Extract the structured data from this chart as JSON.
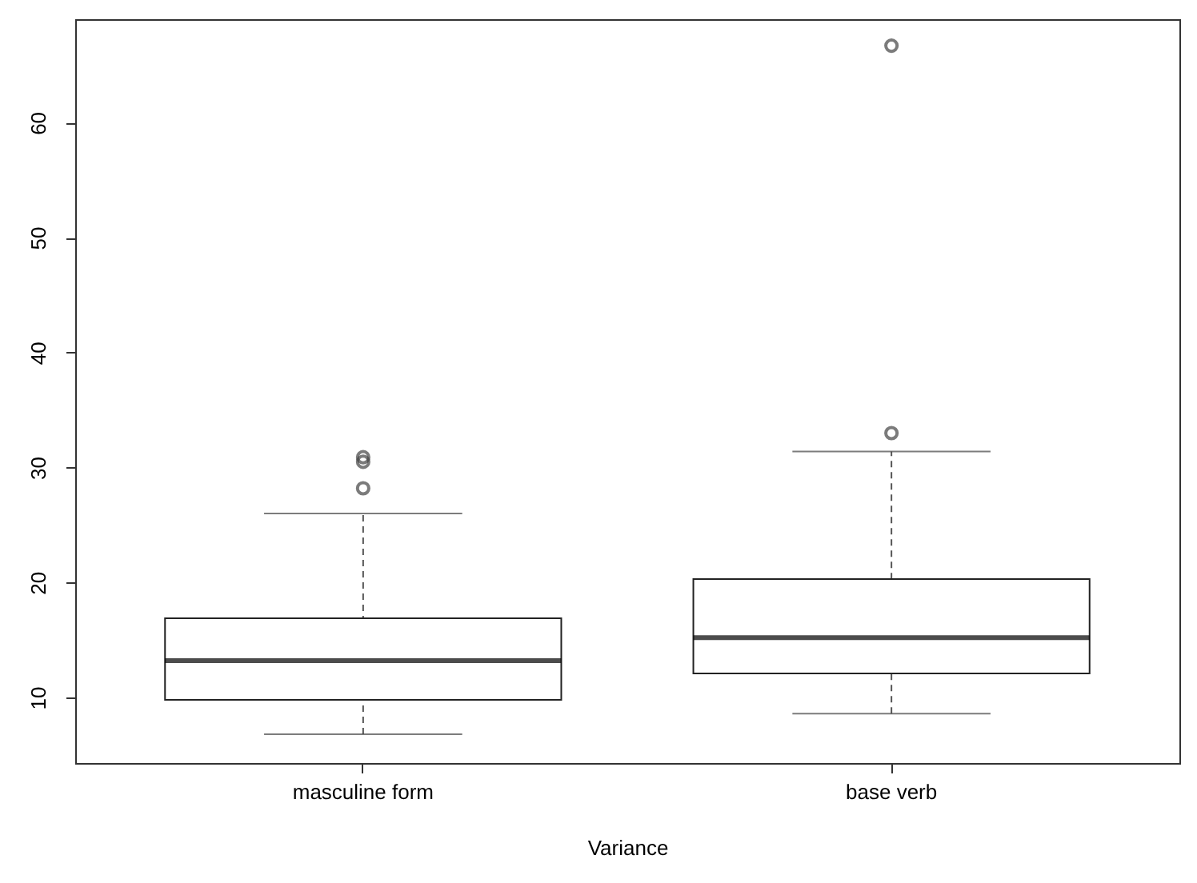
{
  "chart_data": {
    "type": "box",
    "xlabel": "Variance",
    "categories": [
      "masculine form",
      "base verb"
    ],
    "boxes": [
      {
        "low": 6.8,
        "q1": 9.8,
        "median": 13.2,
        "q3": 16.9,
        "high": 26.0,
        "outliers": [
          30.9,
          30.5,
          28.2
        ]
      },
      {
        "low": 8.6,
        "q1": 12.1,
        "median": 15.2,
        "q3": 20.3,
        "high": 31.4,
        "outliers": [
          66.7,
          33.0
        ]
      }
    ],
    "ylim": [
      4.3,
      69.0
    ],
    "yticks": [
      10,
      20,
      30,
      40,
      50,
      60
    ],
    "grid": false,
    "line_style": "dashed"
  }
}
